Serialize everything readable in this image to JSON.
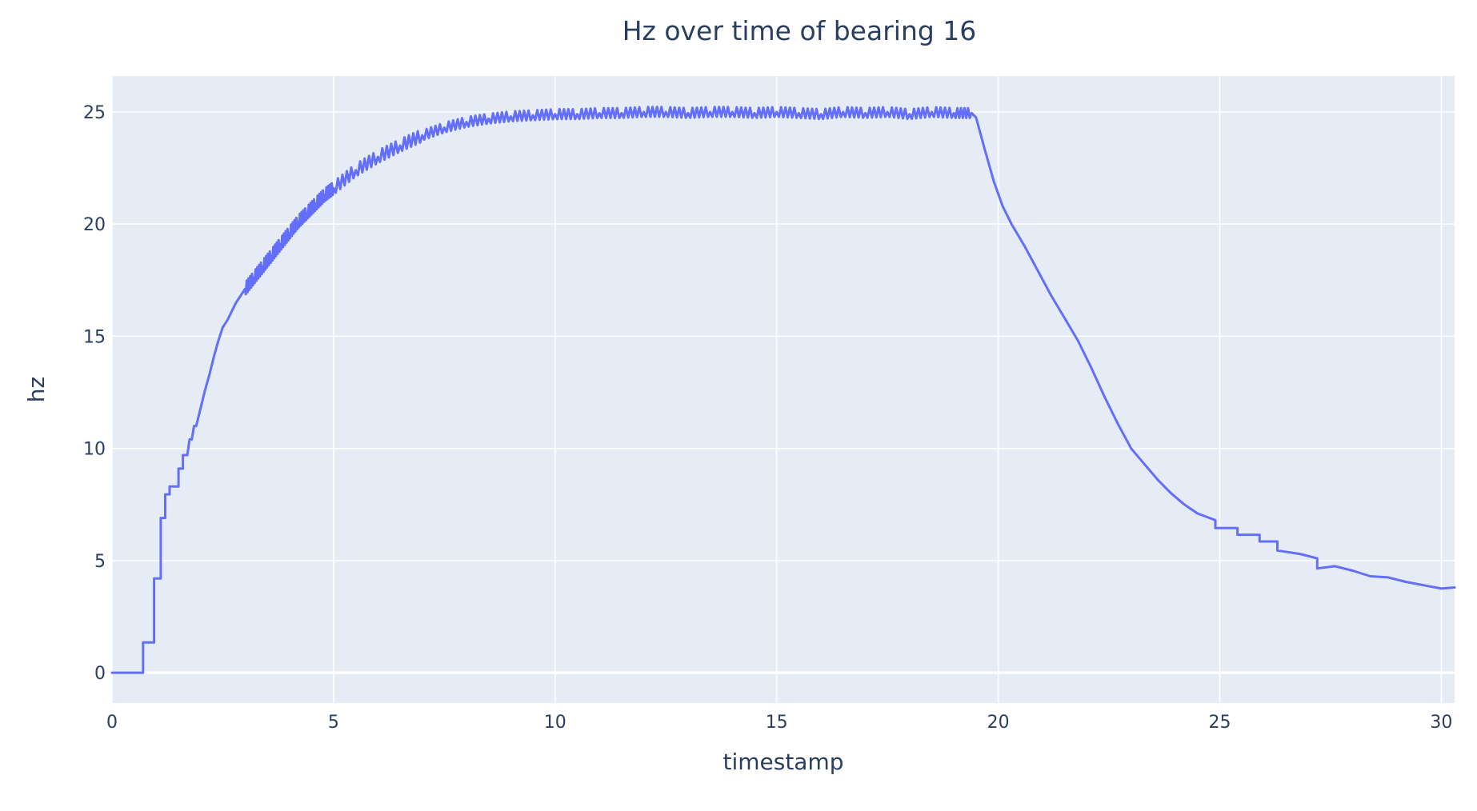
{
  "chart_data": {
    "type": "line",
    "title": "Hz over time of bearing 16",
    "xlabel": "timestamp",
    "ylabel": "hz",
    "xlim": [
      0,
      30.3
    ],
    "ylim": [
      -1.35,
      26.6
    ],
    "xticks": [
      0,
      5,
      10,
      15,
      20,
      25,
      30
    ],
    "xtick_labels": [
      "0",
      "5",
      "10",
      "15",
      "20",
      "25",
      "30"
    ],
    "yticks": [
      0,
      5,
      10,
      15,
      20,
      25
    ],
    "ytick_labels": [
      "0",
      "5",
      "10",
      "15",
      "20",
      "25"
    ],
    "grid": true,
    "legend": "none",
    "plot_background": "#e5ecf6",
    "series": [
      {
        "color": "#636efa",
        "x": [
          0,
          0.7,
          0.7,
          0.95,
          0.95,
          1.1,
          1.1,
          1.2,
          1.2,
          1.3,
          1.3,
          1.5,
          1.5,
          1.6,
          1.6,
          1.7,
          1.75,
          1.8,
          1.85,
          1.9,
          2.0,
          2.1,
          2.2,
          2.3,
          2.4,
          2.5,
          2.6,
          2.7,
          2.8,
          2.9,
          3.0,
          3.2,
          3.4,
          3.6,
          3.8,
          4.0,
          4.2,
          4.4,
          4.6,
          4.8,
          5.0,
          5.5,
          6.0,
          6.5,
          7.0,
          7.5,
          8.0,
          8.5,
          9.0,
          9.5,
          10.0,
          10.5,
          11.0,
          11.5,
          12.0,
          12.5,
          13.0,
          13.5,
          14.0,
          14.5,
          15.0,
          15.5,
          16.0,
          16.5,
          17.0,
          17.5,
          18.0,
          18.5,
          19.0,
          19.4,
          19.5,
          19.7,
          19.9,
          20.1,
          20.3,
          20.6,
          20.9,
          21.2,
          21.5,
          21.8,
          22.1,
          22.4,
          22.7,
          23.0,
          23.3,
          23.6,
          23.9,
          24.2,
          24.5,
          24.9,
          24.9,
          25.4,
          25.4,
          25.9,
          25.9,
          26.3,
          26.3,
          26.8,
          27.2,
          27.2,
          27.6,
          28.0,
          28.4,
          28.8,
          29.2,
          29.6,
          30.0,
          30.3
        ],
        "y": [
          0,
          0,
          1.35,
          1.35,
          4.2,
          4.2,
          6.9,
          6.9,
          7.95,
          7.95,
          8.3,
          8.3,
          9.1,
          9.1,
          9.7,
          9.7,
          10.4,
          10.4,
          11.0,
          11.0,
          11.8,
          12.6,
          13.3,
          14.1,
          14.8,
          15.4,
          15.7,
          16.1,
          16.5,
          16.8,
          17.1,
          17.6,
          18.1,
          18.6,
          19.1,
          19.6,
          20.1,
          20.5,
          20.9,
          21.3,
          21.6,
          22.4,
          23.0,
          23.5,
          23.95,
          24.3,
          24.55,
          24.7,
          24.8,
          24.85,
          24.9,
          24.9,
          24.95,
          24.95,
          25.0,
          25.0,
          24.95,
          25.0,
          25.0,
          24.95,
          25.0,
          24.95,
          24.9,
          25.0,
          24.95,
          25.0,
          24.9,
          25.0,
          24.95,
          24.95,
          24.75,
          23.3,
          21.9,
          20.8,
          20.0,
          19.0,
          17.9,
          16.8,
          15.8,
          14.8,
          13.6,
          12.3,
          11.1,
          10.0,
          9.3,
          8.6,
          8.0,
          7.5,
          7.1,
          6.8,
          6.45,
          6.45,
          6.15,
          6.15,
          5.85,
          5.85,
          5.45,
          5.3,
          5.1,
          4.65,
          4.75,
          4.55,
          4.3,
          4.25,
          4.05,
          3.9,
          3.75,
          3.8
        ]
      }
    ]
  }
}
